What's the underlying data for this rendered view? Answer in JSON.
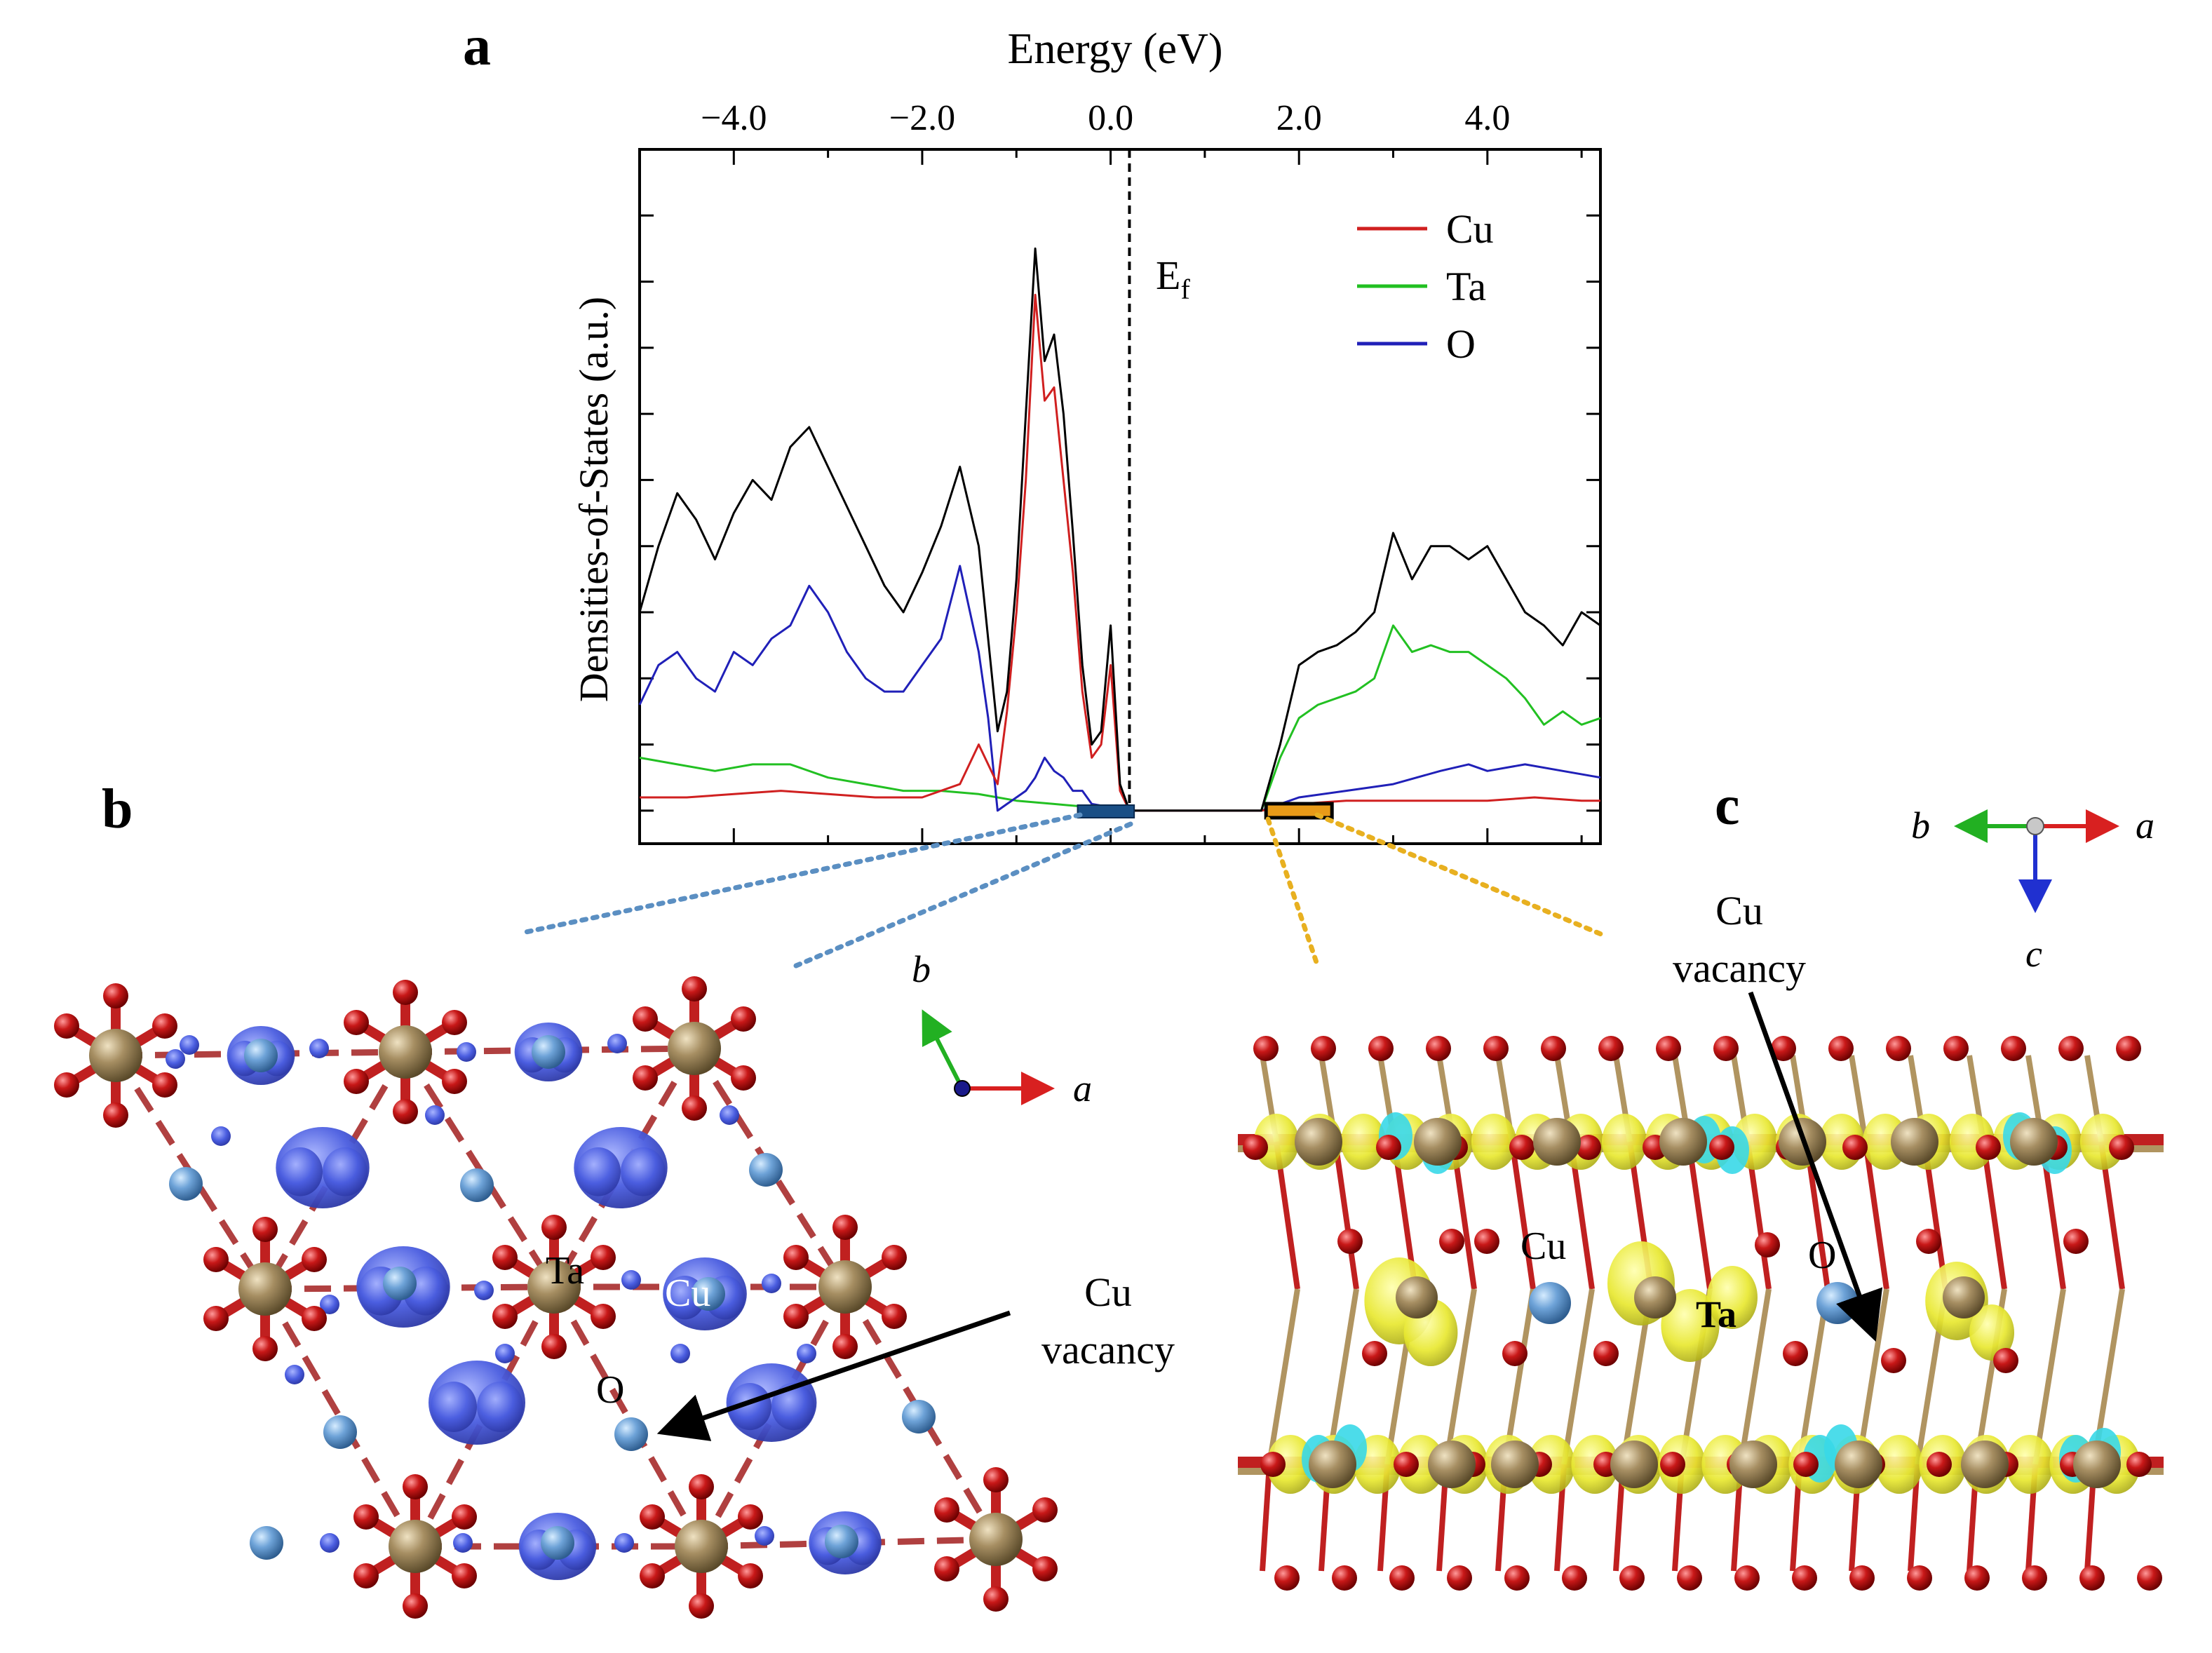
{
  "panels": {
    "a": "a",
    "b": "b",
    "c": "c"
  },
  "chart_data": {
    "type": "line",
    "xlabel": "Energy (eV)",
    "ylabel": "Densities-of-States (a.u.)",
    "xlim": [
      -5.0,
      5.2
    ],
    "ylim": [
      -5,
      100
    ],
    "xticks": [
      -4.0,
      -2.0,
      0.0,
      2.0,
      4.0
    ],
    "xtick_labels": [
      "−4.0",
      "−2.0",
      "0.0",
      "2.0",
      "4.0"
    ],
    "fermi_label": "E",
    "fermi_subscript": "f",
    "fermi_energy": 0.2,
    "legend_placement": "top-right",
    "series": [
      {
        "name": "",
        "color": "#000000",
        "x": [
          -5.0,
          -4.8,
          -4.6,
          -4.4,
          -4.2,
          -4.0,
          -3.8,
          -3.6,
          -3.4,
          -3.2,
          -3.0,
          -2.8,
          -2.6,
          -2.4,
          -2.2,
          -2.0,
          -1.8,
          -1.6,
          -1.4,
          -1.2,
          -1.1,
          -1.0,
          -0.9,
          -0.8,
          -0.7,
          -0.6,
          -0.5,
          -0.4,
          -0.3,
          -0.2,
          -0.1,
          0.0,
          0.1,
          0.2,
          0.3,
          1.0,
          1.6,
          1.8,
          2.0,
          2.2,
          2.4,
          2.6,
          2.8,
          3.0,
          3.2,
          3.4,
          3.6,
          3.8,
          4.0,
          4.2,
          4.4,
          4.6,
          4.8,
          5.0,
          5.2
        ],
        "y": [
          30,
          40,
          48,
          44,
          38,
          45,
          50,
          47,
          55,
          58,
          52,
          46,
          40,
          34,
          30,
          36,
          43,
          52,
          40,
          12,
          18,
          35,
          60,
          85,
          68,
          72,
          60,
          42,
          22,
          10,
          12,
          28,
          4,
          0,
          0,
          0,
          0,
          10,
          22,
          24,
          25,
          27,
          30,
          42,
          35,
          40,
          40,
          38,
          40,
          35,
          30,
          28,
          25,
          30,
          28
        ]
      },
      {
        "name": "Cu",
        "color": "#d02020",
        "x": [
          -5.0,
          -4.5,
          -4.0,
          -3.5,
          -3.0,
          -2.5,
          -2.0,
          -1.6,
          -1.4,
          -1.2,
          -1.1,
          -1.0,
          -0.9,
          -0.8,
          -0.7,
          -0.6,
          -0.5,
          -0.4,
          -0.3,
          -0.2,
          -0.1,
          0.0,
          0.1,
          0.2,
          0.3,
          1.0,
          1.6,
          2.0,
          2.5,
          3.0,
          3.5,
          4.0,
          4.5,
          5.0,
          5.2
        ],
        "y": [
          2,
          2,
          2.5,
          3,
          2.5,
          2,
          2,
          4,
          10,
          4,
          15,
          30,
          50,
          78,
          62,
          64,
          50,
          36,
          18,
          8,
          10,
          22,
          3,
          0,
          0,
          0,
          0,
          1,
          1.5,
          1.5,
          1.5,
          1.5,
          2,
          1.5,
          1.5
        ]
      },
      {
        "name": "Ta",
        "color": "#22c022",
        "x": [
          -5.0,
          -4.6,
          -4.2,
          -3.8,
          -3.4,
          -3.0,
          -2.6,
          -2.2,
          -1.8,
          -1.4,
          -1.0,
          -0.6,
          -0.2,
          0.0,
          0.2,
          0.3,
          1.0,
          1.6,
          1.8,
          2.0,
          2.2,
          2.4,
          2.6,
          2.8,
          3.0,
          3.2,
          3.4,
          3.6,
          3.8,
          4.0,
          4.2,
          4.4,
          4.6,
          4.8,
          5.0,
          5.2
        ],
        "y": [
          8,
          7,
          6,
          7,
          7,
          5,
          4,
          3,
          3,
          2.5,
          1.5,
          1,
          0.5,
          0.5,
          0,
          0,
          0,
          0,
          8,
          14,
          16,
          17,
          18,
          20,
          28,
          24,
          25,
          24,
          24,
          22,
          20,
          17,
          13,
          15,
          13,
          14
        ]
      },
      {
        "name": "O",
        "color": "#2020b8",
        "x": [
          -5.0,
          -4.8,
          -4.6,
          -4.4,
          -4.2,
          -4.0,
          -3.8,
          -3.6,
          -3.4,
          -3.2,
          -3.0,
          -2.8,
          -2.6,
          -2.4,
          -2.2,
          -2.0,
          -1.8,
          -1.6,
          -1.4,
          -1.3,
          -1.2,
          -1.1,
          -1.0,
          -0.9,
          -0.8,
          -0.7,
          -0.6,
          -0.5,
          -0.4,
          -0.3,
          -0.2,
          0.0,
          0.2,
          0.3,
          1.0,
          1.6,
          2.0,
          2.5,
          3.0,
          3.5,
          3.8,
          4.0,
          4.4,
          4.8,
          5.2
        ],
        "y": [
          16,
          22,
          24,
          20,
          18,
          24,
          22,
          26,
          28,
          34,
          30,
          24,
          20,
          18,
          18,
          22,
          26,
          37,
          24,
          14,
          0,
          1,
          2,
          3,
          5,
          8,
          6,
          5,
          3,
          3,
          1,
          0.5,
          0,
          0,
          0,
          0,
          2,
          3,
          4,
          6,
          7,
          6,
          7,
          6,
          5
        ]
      }
    ],
    "markers": [
      {
        "color": "#1a4f86",
        "x_range": [
          -0.35,
          0.25
        ]
      },
      {
        "color": "#e89a18",
        "x_range": [
          1.65,
          2.35
        ]
      }
    ]
  },
  "structures": {
    "b": {
      "axes": {
        "b": "b",
        "a": "a"
      },
      "labels": {
        "ta": "Ta",
        "cu": "Cu",
        "o": "O"
      },
      "vacancy_label": [
        "Cu",
        "vacancy"
      ]
    },
    "c": {
      "axes": {
        "b": "b",
        "a": "a",
        "c": "c"
      },
      "labels": {
        "cu": "Cu",
        "ta": "Ta",
        "o": "O"
      },
      "vacancy_label": [
        "Cu",
        "vacancy"
      ]
    }
  },
  "colors": {
    "cu_atom": "#6ea3d8",
    "ta_atom": "#a68e62",
    "o_atom": "#c81818",
    "isosurface_b": "#4a5de0",
    "isosurface_c": "#e8e830",
    "isosurface_c_alt": "#38d8e8",
    "dotted_b": "#5b8fc2",
    "dotted_c": "#e8b020"
  }
}
